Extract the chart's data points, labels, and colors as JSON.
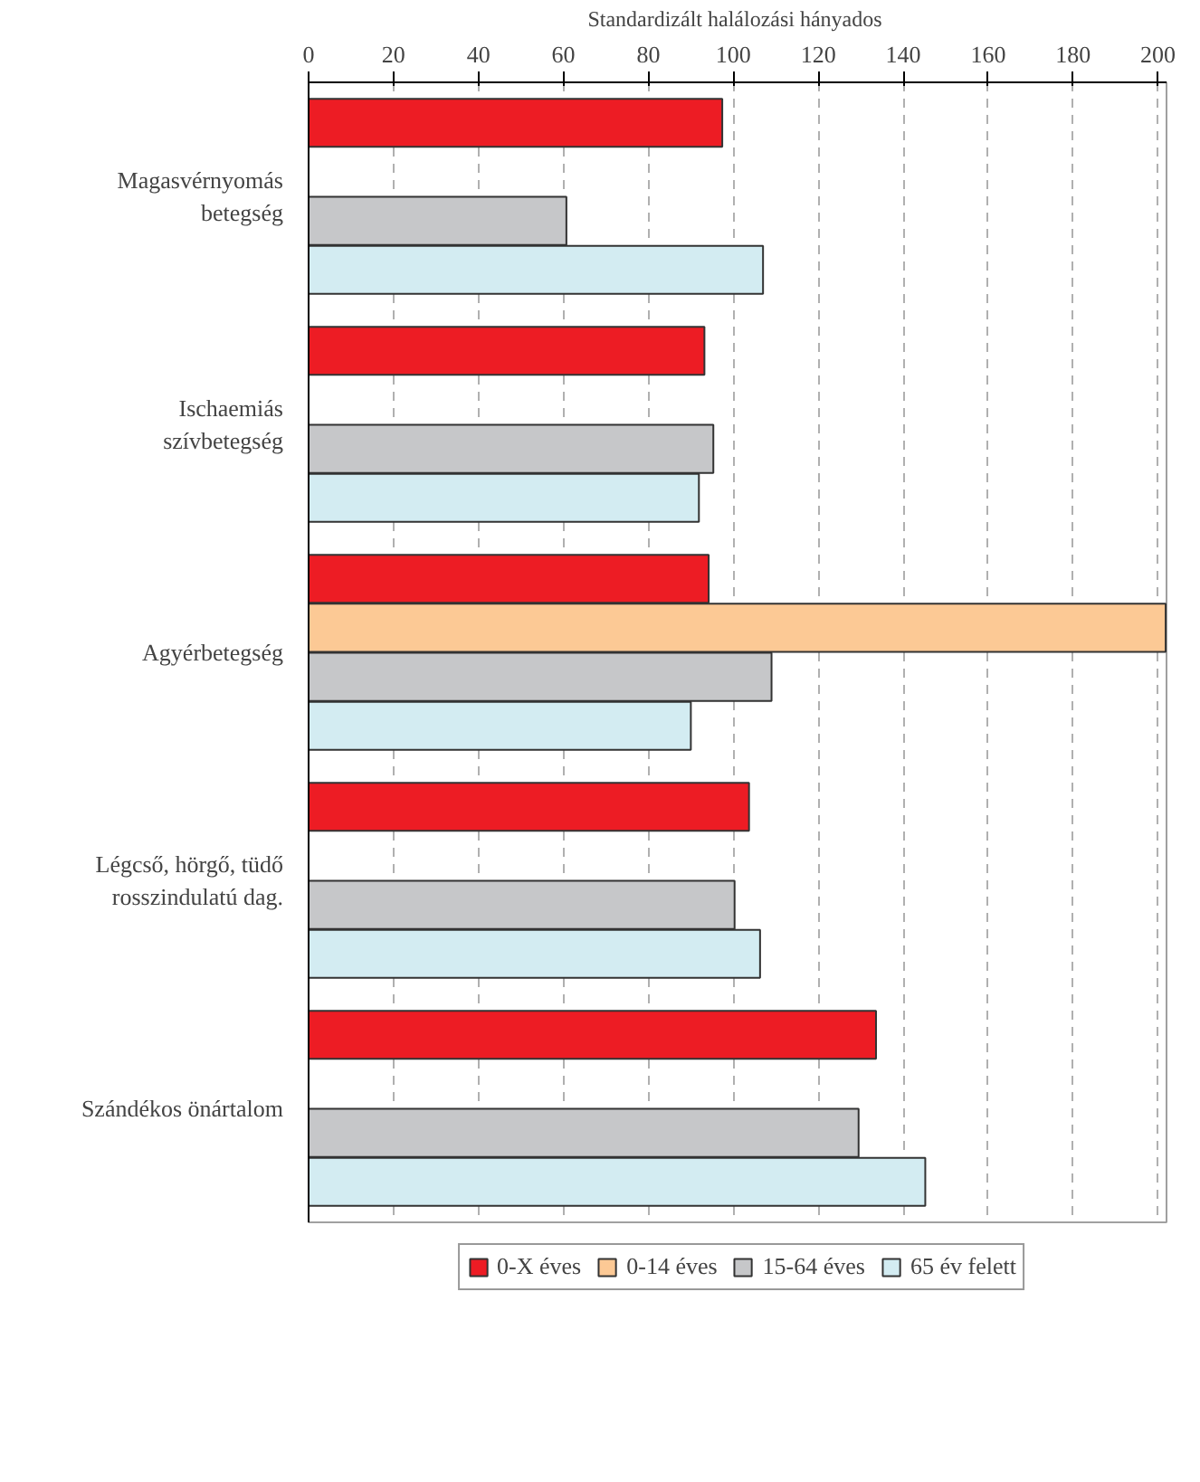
{
  "chart_data": {
    "type": "bar",
    "orientation": "horizontal",
    "xlabel": "Standardizált halálozási  hányados",
    "categories": [
      "Magasvérnyomás betegség",
      "Ischaemiás szívbetegség",
      "Agyérbetegség",
      "Légcső, hörgő, tüdő rosszindulatú dag.",
      "Szándékos önártalom"
    ],
    "series": [
      {
        "name": "0-X éves",
        "color": "#ed1c24",
        "values": [
          97.4,
          93.2,
          94.2,
          103.7,
          133.6
        ]
      },
      {
        "name": "0-14 éves",
        "color": "#fcc995",
        "values": [
          null,
          null,
          201.8,
          null,
          null
        ]
      },
      {
        "name": "15-64 éves",
        "color": "#c6c7c9",
        "values": [
          60.7,
          95.3,
          109,
          100.3,
          129.5
        ]
      },
      {
        "name": "65 év felett",
        "color": "#d3ecf2",
        "values": [
          107,
          91.9,
          90,
          106.3,
          145.2
        ]
      }
    ],
    "xlim": [
      0,
      202
    ],
    "xticks": [
      0,
      20,
      40,
      60,
      80,
      100,
      120,
      140,
      160,
      180,
      200
    ],
    "grid": "x",
    "legend": "bottom"
  }
}
